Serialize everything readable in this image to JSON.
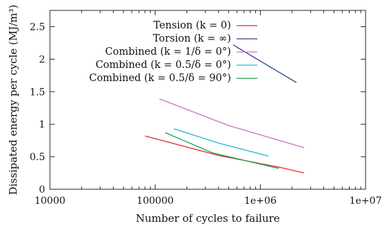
{
  "chart_data": {
    "type": "line",
    "xlabel": "Number of cycles to failure",
    "ylabel": "Dissipated energy per cycle (MJ/m³)",
    "x_scale": "log",
    "xlim": [
      10000,
      10000000
    ],
    "ylim": [
      0,
      2.75
    ],
    "x_ticks": [
      {
        "value": 10000,
        "label": "10000"
      },
      {
        "value": 100000,
        "label": "100000"
      },
      {
        "value": 1000000,
        "label": "1e+06"
      },
      {
        "value": 10000000,
        "label": "1e+07"
      }
    ],
    "y_ticks": [
      {
        "value": 0,
        "label": "0"
      },
      {
        "value": 0.5,
        "label": "0.5"
      },
      {
        "value": 1,
        "label": "1"
      },
      {
        "value": 1.5,
        "label": "1.5"
      },
      {
        "value": 2,
        "label": "2"
      },
      {
        "value": 2.5,
        "label": "2.5"
      }
    ],
    "legend_position": "top-left",
    "series": [
      {
        "name": "Tension (k = 0)",
        "color": "#e8262e",
        "x": [
          80000,
          400000,
          1600000,
          2600000
        ],
        "y": [
          0.82,
          0.52,
          0.33,
          0.25
        ]
      },
      {
        "name": "Torsion (k = ∞)",
        "color": "#2a3f8f",
        "x": [
          550000,
          2200000
        ],
        "y": [
          2.22,
          1.64
        ]
      },
      {
        "name": "Combined (k = 1/δ = 0°)",
        "color": "#cc70b8",
        "x": [
          110000,
          500000,
          2600000
        ],
        "y": [
          1.39,
          0.98,
          0.64
        ]
      },
      {
        "name": "Combined (k = 0.5/δ = 0°)",
        "color": "#22b8d0",
        "x": [
          150000,
          400000,
          1200000
        ],
        "y": [
          0.93,
          0.71,
          0.51
        ]
      },
      {
        "name": "Combined (k = 0.5/δ = 90°)",
        "color": "#18a050",
        "x": [
          125000,
          350000,
          1500000
        ],
        "y": [
          0.87,
          0.56,
          0.32
        ]
      }
    ]
  }
}
